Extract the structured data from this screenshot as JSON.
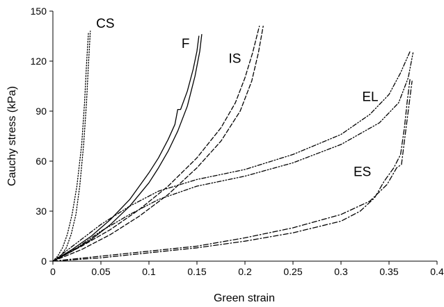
{
  "chart_data": {
    "type": "line",
    "title": "",
    "xlabel": "Green strain",
    "ylabel": "Cauchy stress (kPa)",
    "xlim": [
      0,
      0.4
    ],
    "ylim": [
      0,
      150
    ],
    "x_ticks": [
      0,
      0.05,
      0.1,
      0.15,
      0.2,
      0.25,
      0.3,
      0.35,
      0.4
    ],
    "x_tick_labels": [
      "0",
      "0.05",
      "0.1",
      "0.15",
      "0.2",
      "0.25",
      "0.3",
      "0.35",
      "0.4"
    ],
    "y_ticks": [
      0,
      30,
      60,
      90,
      120,
      150
    ],
    "y_tick_labels": [
      "0",
      "30",
      "60",
      "90",
      "120",
      "150"
    ],
    "grid": false,
    "legend": "none",
    "series": [
      {
        "name": "CS",
        "line_style": "dotted",
        "stroke_width": 1.1,
        "label_at": [
          0.045,
          140
        ],
        "loading": [
          [
            0,
            0
          ],
          [
            0.005,
            3
          ],
          [
            0.01,
            8
          ],
          [
            0.015,
            16
          ],
          [
            0.02,
            28
          ],
          [
            0.025,
            45
          ],
          [
            0.03,
            70
          ],
          [
            0.033,
            95
          ],
          [
            0.035,
            118
          ],
          [
            0.037,
            137
          ]
        ],
        "unloading": [
          [
            0,
            0
          ],
          [
            0.008,
            3
          ],
          [
            0.014,
            8
          ],
          [
            0.019,
            16
          ],
          [
            0.024,
            28
          ],
          [
            0.028,
            45
          ],
          [
            0.032,
            70
          ],
          [
            0.035,
            95
          ],
          [
            0.037,
            118
          ],
          [
            0.039,
            138
          ]
        ]
      },
      {
        "name": "F",
        "line_style": "solid",
        "stroke_width": 1.9,
        "label_at": [
          0.134,
          128
        ],
        "loading": [
          [
            0,
            0
          ],
          [
            0.02,
            7
          ],
          [
            0.04,
            15
          ],
          [
            0.06,
            25
          ],
          [
            0.08,
            37
          ],
          [
            0.1,
            53
          ],
          [
            0.11,
            62
          ],
          [
            0.12,
            73
          ],
          [
            0.127,
            82
          ],
          [
            0.13,
            91
          ],
          [
            0.133,
            91
          ],
          [
            0.14,
            102
          ],
          [
            0.146,
            115
          ],
          [
            0.15,
            126
          ],
          [
            0.152,
            135
          ]
        ],
        "unloading": [
          [
            0,
            0
          ],
          [
            0.02,
            6
          ],
          [
            0.04,
            13
          ],
          [
            0.06,
            22
          ],
          [
            0.08,
            33
          ],
          [
            0.1,
            47
          ],
          [
            0.11,
            56
          ],
          [
            0.12,
            66
          ],
          [
            0.13,
            78
          ],
          [
            0.14,
            93
          ],
          [
            0.148,
            111
          ],
          [
            0.153,
            126
          ],
          [
            0.155,
            136
          ]
        ]
      },
      {
        "name": "IS",
        "line_style": "dashed",
        "stroke_width": 1.3,
        "label_at": [
          0.183,
          119
        ],
        "loading": [
          [
            0,
            0
          ],
          [
            0.03,
            9
          ],
          [
            0.06,
            19
          ],
          [
            0.09,
            31
          ],
          [
            0.12,
            45
          ],
          [
            0.15,
            62
          ],
          [
            0.175,
            80
          ],
          [
            0.19,
            95
          ],
          [
            0.2,
            110
          ],
          [
            0.208,
            125
          ],
          [
            0.215,
            141
          ]
        ],
        "unloading": [
          [
            0,
            0
          ],
          [
            0.03,
            7
          ],
          [
            0.06,
            16
          ],
          [
            0.09,
            27
          ],
          [
            0.12,
            40
          ],
          [
            0.15,
            56
          ],
          [
            0.175,
            72
          ],
          [
            0.195,
            90
          ],
          [
            0.207,
            108
          ],
          [
            0.214,
            125
          ],
          [
            0.219,
            141
          ]
        ]
      },
      {
        "name": "EL",
        "line_style": "dash-dot-dot",
        "stroke_width": 1.2,
        "label_at": [
          0.322,
          96
        ],
        "loading": [
          [
            0,
            0
          ],
          [
            0.025,
            11
          ],
          [
            0.05,
            22
          ],
          [
            0.08,
            33
          ],
          [
            0.11,
            42
          ],
          [
            0.15,
            49
          ],
          [
            0.2,
            55
          ],
          [
            0.25,
            64
          ],
          [
            0.3,
            76
          ],
          [
            0.33,
            88
          ],
          [
            0.35,
            100
          ],
          [
            0.362,
            113
          ],
          [
            0.372,
            126
          ]
        ],
        "unloading": [
          [
            0,
            0
          ],
          [
            0.025,
            8
          ],
          [
            0.05,
            18
          ],
          [
            0.08,
            28
          ],
          [
            0.11,
            37
          ],
          [
            0.15,
            45
          ],
          [
            0.2,
            51
          ],
          [
            0.25,
            59
          ],
          [
            0.3,
            70
          ],
          [
            0.34,
            83
          ],
          [
            0.36,
            95
          ],
          [
            0.37,
            110
          ],
          [
            0.375,
            125
          ]
        ]
      },
      {
        "name": "ES",
        "line_style": "dash-dot",
        "stroke_width": 1.2,
        "label_at": [
          0.313,
          51
        ],
        "loading": [
          [
            0,
            0
          ],
          [
            0.05,
            2
          ],
          [
            0.1,
            5
          ],
          [
            0.15,
            8
          ],
          [
            0.2,
            12
          ],
          [
            0.25,
            17
          ],
          [
            0.3,
            24
          ],
          [
            0.32,
            30
          ],
          [
            0.335,
            38
          ],
          [
            0.345,
            48
          ],
          [
            0.355,
            56
          ],
          [
            0.362,
            64
          ],
          [
            0.366,
            80
          ],
          [
            0.369,
            96
          ],
          [
            0.372,
            110
          ]
        ],
        "unloading": [
          [
            0,
            0
          ],
          [
            0.05,
            3
          ],
          [
            0.1,
            6
          ],
          [
            0.15,
            9
          ],
          [
            0.2,
            14
          ],
          [
            0.25,
            20
          ],
          [
            0.3,
            28
          ],
          [
            0.33,
            36
          ],
          [
            0.348,
            46
          ],
          [
            0.358,
            56
          ],
          [
            0.363,
            58
          ],
          [
            0.366,
            72
          ],
          [
            0.37,
            90
          ],
          [
            0.374,
            108
          ]
        ]
      }
    ]
  }
}
